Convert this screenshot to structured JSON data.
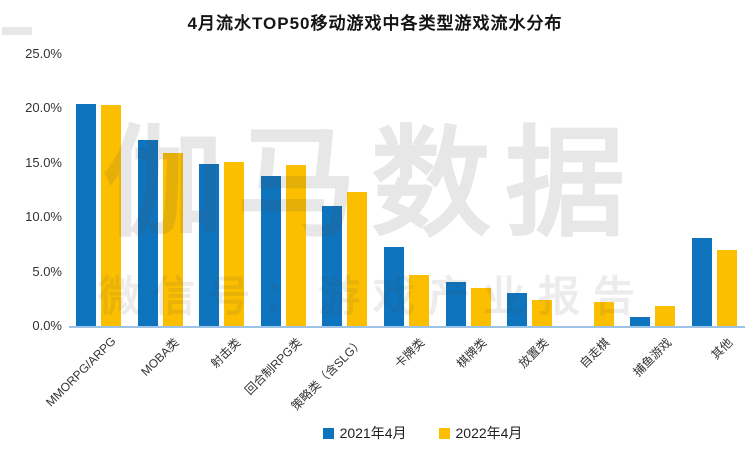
{
  "title": "4月流水TOP50移动游戏中各类型游戏流水分布",
  "watermark": {
    "line1": "伽马数据",
    "line2": "微信号：游戏产业报告"
  },
  "chart_data": {
    "type": "bar",
    "title": "4月流水TOP50移动游戏中各类型游戏流水分布",
    "categories": [
      "MMORPG/ARPG",
      "MOBA类",
      "射击类",
      "回合制RPG类",
      "策略类（含SLG）",
      "卡牌类",
      "棋牌类",
      "放置类",
      "自走棋",
      "捕鱼游戏",
      "其他"
    ],
    "series": [
      {
        "name": "2021年4月",
        "color": "#0F74BE",
        "values": [
          20.4,
          17.1,
          14.9,
          13.8,
          11.0,
          7.3,
          4.0,
          3.0,
          0,
          0.8,
          8.1
        ]
      },
      {
        "name": "2022年4月",
        "color": "#FCBF00",
        "values": [
          20.3,
          15.9,
          15.1,
          14.8,
          12.3,
          4.7,
          3.5,
          2.4,
          2.2,
          1.8,
          7.0
        ]
      }
    ],
    "ylabel": "",
    "xlabel": "",
    "ylim": [
      0,
      25
    ],
    "yticks": [
      {
        "label": "25.0%",
        "value": 25
      },
      {
        "label": "20.0%",
        "value": 20
      },
      {
        "label": "15.0%",
        "value": 15
      },
      {
        "label": "10.0%",
        "value": 10
      },
      {
        "label": "5.0%",
        "value": 5
      },
      {
        "label": "0.0%",
        "value": 0
      }
    ],
    "grid": false,
    "legend_position": "bottom",
    "axis_line_color": "#9DC3E6"
  }
}
